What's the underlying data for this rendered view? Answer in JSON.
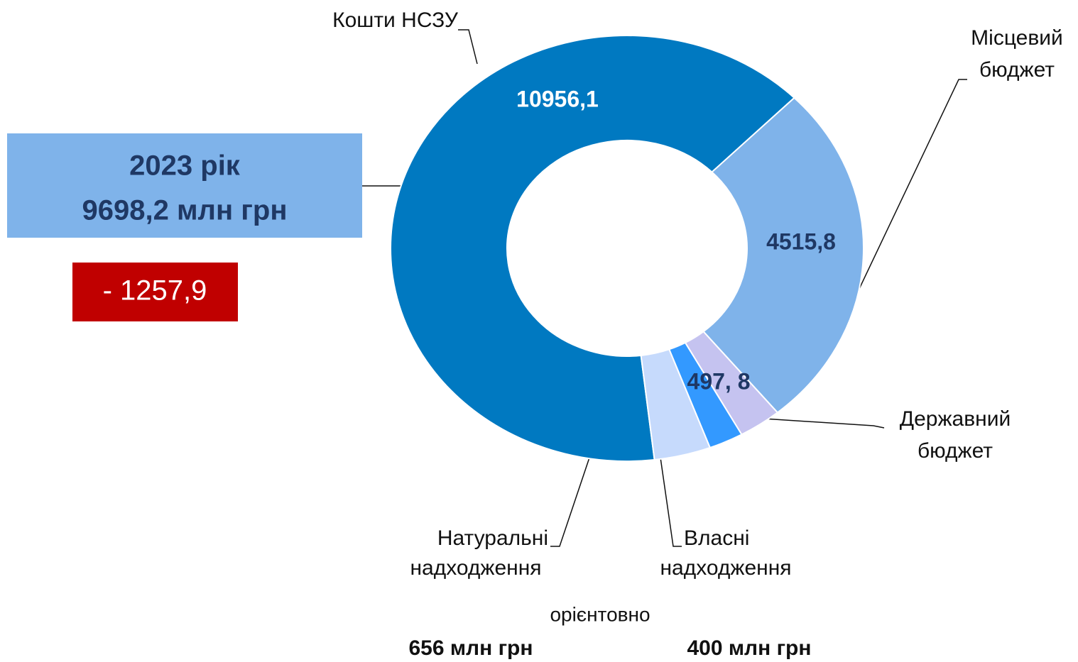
{
  "chart_data": {
    "type": "donut",
    "categories": [
      "Кошти НСЗУ",
      "Місцевий бюджет",
      "Державний бюджет",
      "Власні надходження",
      "Натуральні надходження"
    ],
    "values": [
      10956.1,
      4515.8,
      497.8,
      400,
      656
    ],
    "value_labels": [
      "10956,1",
      "4515,8",
      "497, 8",
      "400 млн грн",
      "656 млн грн"
    ],
    "colors": [
      "#0079c1",
      "#7fb3ea",
      "#c5c3f0",
      "#3399ff",
      "#c6dafc"
    ],
    "annotations": [
      "2023 рік",
      "9698,2 млн грн",
      "- 1257,9",
      "орієнтовно"
    ]
  }
}
